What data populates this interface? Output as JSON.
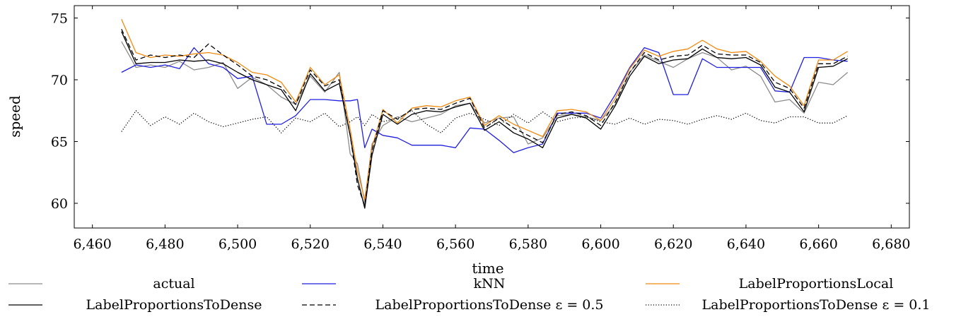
{
  "chart_data": {
    "type": "line",
    "title": "",
    "xlabel": "time",
    "ylabel": "speed",
    "xlim": [
      6455,
      6685
    ],
    "ylim": [
      58,
      76
    ],
    "x_ticks": [
      6460,
      6480,
      6500,
      6520,
      6540,
      6560,
      6580,
      6600,
      6620,
      6640,
      6660,
      6680
    ],
    "x_tick_labels": [
      "6,460",
      "6,480",
      "6,500",
      "6,520",
      "6,540",
      "6,560",
      "6,580",
      "6,600",
      "6,620",
      "6,640",
      "6,660",
      "6,680"
    ],
    "y_ticks": [
      60,
      65,
      70,
      75
    ],
    "y_tick_labels": [
      "60",
      "65",
      "70",
      "75"
    ],
    "grid": false,
    "legend_position": "bottom",
    "legend_columns": 3,
    "x": [
      6468,
      6472,
      6476,
      6480,
      6484,
      6488,
      6492,
      6496,
      6500,
      6504,
      6508,
      6512,
      6516,
      6520,
      6524,
      6528,
      6531,
      6533,
      6535,
      6537,
      6540,
      6544,
      6548,
      6552,
      6556,
      6560,
      6564,
      6568,
      6572,
      6576,
      6580,
      6584,
      6588,
      6592,
      6596,
      6600,
      6604,
      6608,
      6612,
      6616,
      6620,
      6624,
      6628,
      6632,
      6636,
      6640,
      6644,
      6648,
      6652,
      6656,
      6660,
      6664,
      6668
    ],
    "series": [
      {
        "name": "actual",
        "color": "#8c8c8c",
        "dash": "solid",
        "values": [
          73.1,
          71.0,
          71.2,
          71.0,
          71.5,
          70.8,
          71.0,
          71.4,
          69.3,
          70.2,
          69.6,
          68.6,
          68.0,
          70.3,
          69.0,
          70.6,
          64.0,
          63.2,
          60.1,
          64.8,
          66.3,
          67.0,
          66.6,
          66.9,
          67.2,
          67.9,
          68.1,
          66.5,
          66.9,
          67.0,
          64.8,
          65.3,
          67.1,
          67.2,
          67.0,
          66.7,
          68.0,
          70.6,
          72.0,
          71.5,
          71.0,
          71.7,
          72.2,
          71.8,
          70.8,
          71.1,
          70.3,
          68.2,
          68.4,
          67.3,
          69.8,
          69.6,
          70.6
        ]
      },
      {
        "name": "kNN",
        "color": "#1f1fe0",
        "dash": "solid",
        "values": [
          70.6,
          71.2,
          71.0,
          71.2,
          70.9,
          72.6,
          71.3,
          71.0,
          70.1,
          70.3,
          66.4,
          66.4,
          67.1,
          68.4,
          68.4,
          68.3,
          68.3,
          68.4,
          64.5,
          66.0,
          65.5,
          65.3,
          64.7,
          64.7,
          64.7,
          64.5,
          66.1,
          66.0,
          65.1,
          64.1,
          64.5,
          64.8,
          67.3,
          67.3,
          67.3,
          66.9,
          68.8,
          71.0,
          72.6,
          72.2,
          68.8,
          68.8,
          71.7,
          71.0,
          71.0,
          71.0,
          71.0,
          69.1,
          69.0,
          71.8,
          71.8,
          71.6,
          71.5
        ]
      },
      {
        "name": "LabelProportionsLocal",
        "color": "#f08a10",
        "dash": "solid",
        "values": [
          74.9,
          72.2,
          71.8,
          72.0,
          71.9,
          72.1,
          72.2,
          72.0,
          71.4,
          70.6,
          70.4,
          69.8,
          68.2,
          71.0,
          69.6,
          70.4,
          66.0,
          62.6,
          60.3,
          64.5,
          67.6,
          66.5,
          67.7,
          67.9,
          67.8,
          68.3,
          68.6,
          66.3,
          67.1,
          66.4,
          65.9,
          65.4,
          67.5,
          67.6,
          67.4,
          66.7,
          68.5,
          70.9,
          72.4,
          71.9,
          72.3,
          72.5,
          73.2,
          72.5,
          72.2,
          72.3,
          71.5,
          70.3,
          69.5,
          67.9,
          71.6,
          71.6,
          72.3
        ]
      },
      {
        "name": "LabelProportionsToDense",
        "color": "#000000",
        "dash": "solid",
        "values": [
          73.9,
          71.3,
          71.4,
          71.4,
          71.6,
          71.5,
          71.6,
          71.3,
          70.6,
          70.0,
          69.6,
          69.2,
          67.5,
          70.5,
          69.1,
          69.7,
          65.5,
          62.0,
          59.6,
          63.9,
          67.2,
          66.4,
          67.2,
          67.5,
          67.4,
          67.8,
          68.1,
          65.9,
          66.6,
          65.7,
          65.2,
          64.5,
          66.9,
          67.2,
          66.9,
          66.0,
          67.9,
          70.3,
          71.9,
          71.3,
          71.6,
          71.7,
          72.5,
          71.8,
          71.7,
          71.8,
          71.2,
          69.4,
          69.0,
          67.4,
          71.0,
          71.1,
          71.7
        ]
      },
      {
        "name": "LabelProportionsToDense ε = 0.5",
        "color": "#000000",
        "dash": "dashed",
        "values": [
          74.1,
          71.6,
          72.0,
          71.8,
          72.0,
          71.8,
          72.9,
          72.0,
          71.2,
          70.3,
          70.0,
          69.4,
          68.0,
          70.8,
          69.5,
          70.0,
          65.5,
          61.5,
          59.8,
          64.3,
          67.5,
          66.8,
          67.6,
          67.7,
          67.6,
          68.1,
          68.5,
          66.1,
          66.9,
          66.1,
          65.5,
          64.9,
          67.2,
          67.4,
          67.1,
          66.3,
          68.2,
          70.6,
          72.2,
          71.6,
          71.9,
          72.0,
          72.8,
          72.1,
          72.0,
          72.0,
          71.4,
          69.8,
          69.3,
          67.7,
          71.3,
          71.3,
          71.9
        ]
      },
      {
        "name": "LabelProportionsToDense ε = 0.1",
        "color": "#000000",
        "dash": "dotted",
        "values": [
          65.8,
          67.5,
          66.3,
          67.0,
          66.4,
          67.3,
          66.6,
          66.2,
          66.5,
          66.8,
          67.0,
          65.7,
          66.9,
          66.6,
          67.3,
          66.2,
          66.6,
          67.0,
          66.3,
          67.2,
          66.6,
          66.9,
          67.5,
          66.4,
          65.7,
          66.9,
          67.3,
          66.8,
          66.3,
          67.2,
          66.5,
          67.4,
          66.6,
          66.9,
          67.0,
          66.6,
          66.4,
          66.9,
          66.4,
          66.8,
          66.7,
          66.4,
          66.8,
          67.1,
          66.8,
          67.3,
          66.7,
          66.5,
          67.0,
          67.0,
          66.5,
          66.5,
          67.1
        ]
      }
    ]
  },
  "legend": {
    "items": [
      {
        "label": "actual",
        "color": "#8c8c8c",
        "dash": "solid"
      },
      {
        "label": "kNN",
        "color": "#1f1fe0",
        "dash": "solid"
      },
      {
        "label": "LabelProportionsLocal",
        "color": "#f08a10",
        "dash": "solid"
      },
      {
        "label": "LabelProportionsToDense",
        "color": "#000000",
        "dash": "solid"
      },
      {
        "label": "LabelProportionsToDense ε = 0.5",
        "color": "#000000",
        "dash": "dashed"
      },
      {
        "label": "LabelProportionsToDense ε = 0.1",
        "color": "#000000",
        "dash": "dotted"
      }
    ]
  }
}
